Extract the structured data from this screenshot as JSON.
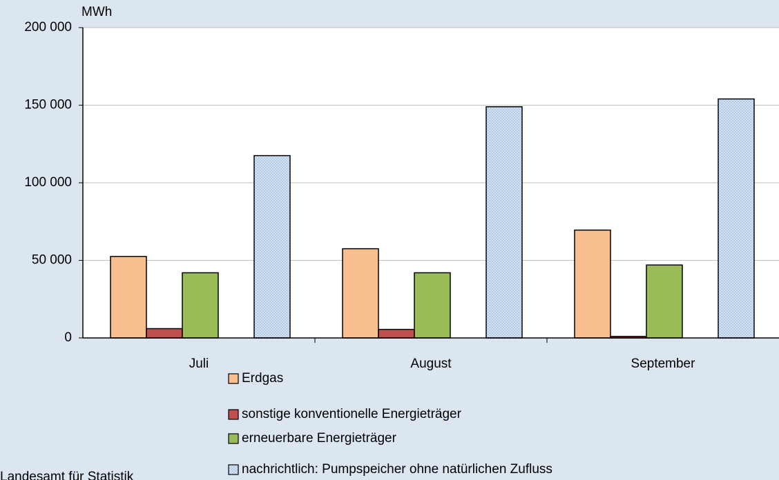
{
  "chart_data": {
    "type": "bar",
    "unit": "MWh",
    "categories": [
      "Juli",
      "August",
      "September"
    ],
    "series": [
      {
        "name": "Erdgas",
        "color": "#f8c08f",
        "values": [
          52500,
          57500,
          69500
        ]
      },
      {
        "name": "sonstige konventionelle Energieträger",
        "color": "#c0504d",
        "values": [
          6000,
          5500,
          1000
        ]
      },
      {
        "name": "erneuerbare Energieträger",
        "color": "#9bbb59",
        "values": [
          42000,
          42000,
          47000
        ]
      },
      {
        "name": "nachrichtlich: Pumpspeicher ohne natürlichen Zufluss",
        "color": "#b4cbe8",
        "values": [
          117500,
          149000,
          154000
        ]
      }
    ],
    "ylim": [
      0,
      200000
    ],
    "yticks": [
      0,
      {
        "value": 50000,
        "label": "50 000"
      },
      {
        "value": 100000,
        "label": "100 000"
      },
      {
        "value": 150000,
        "label": "150 000"
      },
      {
        "value": 200000,
        "label": "200 000"
      }
    ],
    "grid": true,
    "source": "Landesamt für Statistik"
  }
}
